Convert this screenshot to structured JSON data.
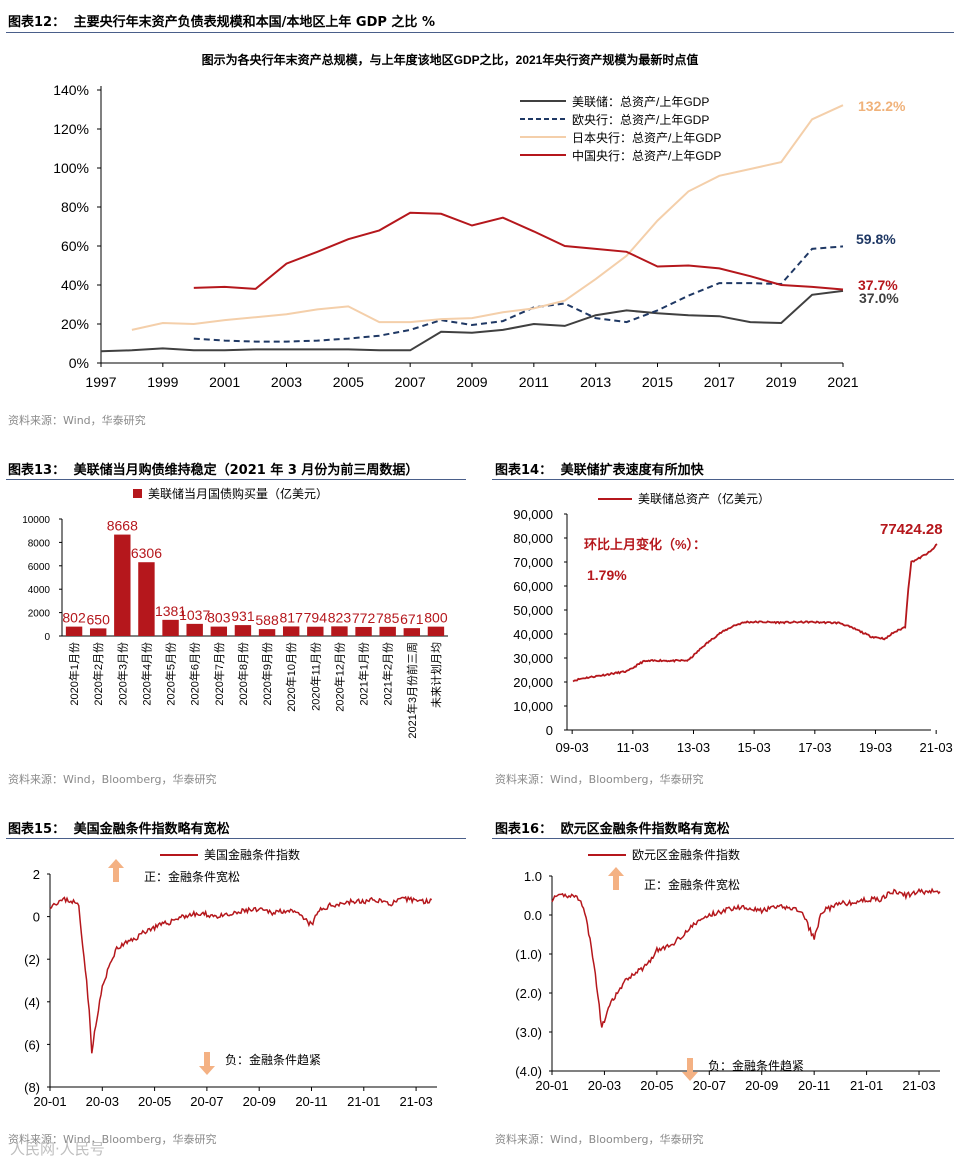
{
  "page": {
    "source_wind": "资料来源：Wind，华泰研究",
    "source_wind_bb": "资料来源：Wind，Bloomberg，华泰研究",
    "watermark": "人民网·人民号"
  },
  "chart_data": [
    {
      "id": "fig12",
      "type": "line",
      "label": "图表12：",
      "title": "主要央行年末资产负债表规模和本国/本地区上年 GDP 之比 %",
      "subtitle": "图示为各央行年末资产总规模，与上年度该地区GDP之比，2021年央行资产规模为最新时点值",
      "x_ticks": [
        "1997",
        "1999",
        "2001",
        "2003",
        "2005",
        "2007",
        "2009",
        "2011",
        "2013",
        "2015",
        "2017",
        "2019",
        "2021"
      ],
      "y_ticks": [
        "0%",
        "20%",
        "40%",
        "60%",
        "80%",
        "100%",
        "120%",
        "140%"
      ],
      "ylim": [
        0,
        140
      ],
      "xlim": [
        1997,
        2021
      ],
      "legend_position": "top-right",
      "series": [
        {
          "name": "美联储：总资产/上年GDP",
          "color": "#404040",
          "dash": "solid",
          "end_label": "37.0%",
          "x": [
            1997,
            1998,
            1999,
            2000,
            2001,
            2002,
            2003,
            2004,
            2005,
            2006,
            2007,
            2008,
            2009,
            2010,
            2011,
            2012,
            2013,
            2014,
            2015,
            2016,
            2017,
            2018,
            2019,
            2020,
            2021
          ],
          "y": [
            6,
            6.5,
            7.5,
            6.5,
            6.5,
            7,
            7,
            7,
            7,
            6.5,
            6.5,
            16,
            15.5,
            17,
            20,
            19,
            24.5,
            27,
            25.5,
            24.5,
            24,
            21,
            20.5,
            35,
            37
          ]
        },
        {
          "name": "欧央行：总资产/上年GDP",
          "color": "#1f3864",
          "dash": "dashed",
          "end_label": "59.8%",
          "x": [
            2000,
            2001,
            2002,
            2003,
            2004,
            2005,
            2006,
            2007,
            2008,
            2009,
            2010,
            2011,
            2012,
            2013,
            2014,
            2015,
            2016,
            2017,
            2018,
            2019,
            2020,
            2021
          ],
          "y": [
            12.5,
            11.5,
            11,
            11,
            11.5,
            12.5,
            14,
            17,
            22,
            19.5,
            21.5,
            28.5,
            30.5,
            23,
            21,
            27,
            34.5,
            41,
            41,
            40.5,
            58.5,
            59.8
          ]
        },
        {
          "name": "日本央行：总资产/上年GDP",
          "color": "#f4cfaa",
          "dash": "solid",
          "end_label": "132.2%",
          "x": [
            1998,
            1999,
            2000,
            2001,
            2002,
            2003,
            2004,
            2005,
            2006,
            2007,
            2008,
            2009,
            2010,
            2011,
            2012,
            2013,
            2014,
            2015,
            2016,
            2017,
            2018,
            2019,
            2020,
            2021
          ],
          "y": [
            17,
            20.5,
            20,
            22,
            23.5,
            25,
            27.5,
            29,
            21,
            21,
            22.5,
            23,
            26,
            28,
            32,
            43,
            55,
            73,
            88,
            96,
            99.5,
            103,
            125,
            132.2
          ]
        },
        {
          "name": "中国央行：总资产/上年GDP",
          "color": "#b5171c",
          "dash": "solid",
          "end_label": "37.7%",
          "x": [
            2000,
            2001,
            2002,
            2003,
            2004,
            2005,
            2006,
            2007,
            2008,
            2009,
            2010,
            2011,
            2012,
            2013,
            2014,
            2015,
            2016,
            2017,
            2018,
            2019,
            2020,
            2021
          ],
          "y": [
            38.5,
            39,
            38,
            51,
            57,
            63.5,
            68,
            77,
            76.5,
            70.5,
            74.5,
            67.5,
            60,
            58.5,
            57,
            49.5,
            50,
            48.5,
            44.5,
            40,
            39,
            37.7
          ]
        }
      ]
    },
    {
      "id": "fig13",
      "type": "bar",
      "label": "图表13：",
      "title": "美联储当月购债维持稳定（2021 年 3 月份为前三周数据）",
      "legend": "美联储当月国债购买量（亿美元）",
      "color": "#b5171c",
      "ylim": [
        0,
        10000
      ],
      "y_ticks": [
        "0",
        "2000",
        "4000",
        "6000",
        "8000",
        "10000"
      ],
      "categories": [
        "2020年1月份",
        "2020年2月份",
        "2020年3月份",
        "2020年4月份",
        "2020年5月份",
        "2020年6月份",
        "2020年7月份",
        "2020年8月份",
        "2020年9月份",
        "2020年10月份",
        "2020年11月份",
        "2020年12月份",
        "2021年1月份",
        "2021年2月份",
        "2021年3月份前三周",
        "未来计划月均"
      ],
      "values": [
        802,
        650,
        8668,
        6306,
        1381,
        1037,
        803,
        931,
        588,
        817,
        794,
        823,
        772,
        785,
        671,
        800
      ],
      "data_labels": [
        "802",
        "650",
        "8668",
        "6306",
        "1381",
        "1037",
        "803",
        "931",
        "588",
        "817",
        "794",
        "823",
        "772",
        "785",
        "671",
        "800"
      ]
    },
    {
      "id": "fig14",
      "type": "line",
      "label": "图表14：",
      "title": "美联储扩表速度有所加快",
      "legend": "美联储总资产（亿美元）",
      "color": "#b5171c",
      "annotation_title": "环比上月变化（%）：",
      "annotation_value": "1.79%",
      "end_label": "77424.28",
      "x_ticks": [
        "09-03",
        "11-03",
        "13-03",
        "15-03",
        "17-03",
        "19-03",
        "21-03"
      ],
      "y_ticks": [
        "0",
        "10,000",
        "20,000",
        "30,000",
        "40,000",
        "50,000",
        "60,000",
        "70,000",
        "80,000",
        "90,000"
      ],
      "ylim": [
        0,
        90000
      ],
      "x": [
        2009.2,
        2009.5,
        2010.0,
        2010.5,
        2011.0,
        2011.5,
        2012.0,
        2012.5,
        2013.0,
        2013.5,
        2014.0,
        2014.5,
        2014.9,
        2015.5,
        2016.0,
        2017.0,
        2018.0,
        2018.6,
        2019.0,
        2019.5,
        2019.75,
        2020.0,
        2020.15,
        2020.25,
        2020.35,
        2020.6,
        2021.0,
        2021.2
      ],
      "y": [
        20500,
        21500,
        22500,
        23500,
        24500,
        28500,
        29000,
        28800,
        29000,
        35000,
        40000,
        43500,
        45000,
        45000,
        44800,
        45000,
        44600,
        41500,
        39000,
        38000,
        40500,
        42000,
        43000,
        59000,
        70000,
        71500,
        74500,
        77424
      ]
    },
    {
      "id": "fig15",
      "type": "line",
      "label": "图表15：",
      "title": "美国金融条件指数略有宽松",
      "legend": "美国金融条件指数",
      "color": "#b5171c",
      "pos_note": "正：金融条件宽松",
      "neg_note": "负：金融条件趋紧",
      "x_ticks": [
        "20-01",
        "20-03",
        "20-05",
        "20-07",
        "20-09",
        "20-11",
        "21-01",
        "21-03"
      ],
      "y_ticks": [
        "2",
        "0",
        "(2)",
        "(4)",
        "(6)",
        "(8)"
      ],
      "ylim": [
        -8,
        2
      ],
      "x": [
        0,
        0.3,
        0.6,
        0.9,
        1.1,
        1.2,
        1.3,
        1.4,
        1.5,
        1.6,
        1.7,
        1.8,
        1.9,
        2.0,
        2.1,
        2.3,
        2.5,
        2.8,
        3.0,
        3.3,
        3.6,
        4.0,
        4.5,
        5.0,
        5.5,
        6.0,
        6.5,
        7.0,
        7.5,
        8.0,
        8.5,
        9.0,
        9.5,
        10.0,
        10.3,
        10.7,
        11.0,
        11.5,
        12.0,
        12.5,
        13.0,
        13.5,
        14.0,
        14.3,
        14.6
      ],
      "y": [
        0.5,
        0.7,
        0.8,
        0.7,
        0.5,
        -0.8,
        -1.8,
        -3.0,
        -4.5,
        -6.3,
        -5.5,
        -4.8,
        -4.0,
        -3.3,
        -3.0,
        -2.2,
        -1.6,
        -1.3,
        -1.2,
        -1.0,
        -0.7,
        -0.5,
        -0.3,
        0.0,
        0.1,
        0.1,
        0.0,
        0.1,
        0.3,
        0.3,
        0.2,
        0.3,
        0.1,
        -0.4,
        0.3,
        0.5,
        0.6,
        0.7,
        0.7,
        0.8,
        0.6,
        0.8,
        0.8,
        0.7,
        0.8
      ]
    },
    {
      "id": "fig16",
      "type": "line",
      "label": "图表16：",
      "title": "欧元区金融条件指数略有宽松",
      "legend": "欧元区金融条件指数",
      "color": "#b5171c",
      "pos_note": "正：金融条件宽松",
      "neg_note": "负：金融条件趋紧",
      "x_ticks": [
        "20-01",
        "20-03",
        "20-05",
        "20-07",
        "20-09",
        "20-11",
        "21-01",
        "21-03"
      ],
      "y_ticks": [
        "1.0",
        "0.0",
        "(1.0)",
        "(2.0)",
        "(3.0)",
        "(4.0)"
      ],
      "ylim": [
        -4,
        1
      ],
      "x": [
        0,
        0.4,
        0.8,
        1.1,
        1.3,
        1.5,
        1.7,
        1.9,
        2.1,
        2.3,
        2.5,
        2.8,
        3.1,
        3.4,
        3.7,
        4.0,
        4.5,
        5.0,
        5.5,
        6.0,
        6.5,
        7.0,
        7.5,
        8.0,
        8.5,
        9.0,
        9.5,
        10.0,
        10.3,
        10.7,
        11.0,
        11.5,
        12.0,
        12.5,
        13.0,
        13.5,
        14.0,
        14.5,
        14.8
      ],
      "y": [
        0.4,
        0.5,
        0.5,
        0.4,
        -0.1,
        -0.8,
        -1.8,
        -2.9,
        -2.5,
        -2.2,
        -2.0,
        -1.7,
        -1.5,
        -1.4,
        -1.2,
        -0.9,
        -0.8,
        -0.5,
        -0.2,
        0.0,
        0.1,
        0.2,
        0.2,
        0.1,
        0.2,
        0.2,
        0.1,
        -0.6,
        0.1,
        0.2,
        0.3,
        0.3,
        0.4,
        0.4,
        0.6,
        0.5,
        0.6,
        0.6,
        0.6
      ]
    }
  ]
}
